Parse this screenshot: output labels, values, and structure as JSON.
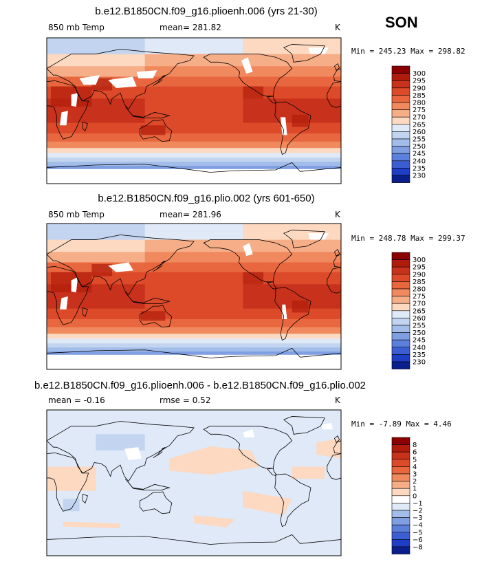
{
  "season": "SON",
  "panels": [
    {
      "title": "b.e12.B1850CN.f09_g16.plioenh.006 (yrs 21-30)",
      "left": "850 mb Temp",
      "center": "mean=  281.82",
      "right": "K",
      "stats": "Min = 245.23 Max = 298.82"
    },
    {
      "title": "b.e12.B1850CN.f09_g16.plio.002 (yrs 601-650)",
      "left": "850 mb Temp",
      "center": "mean=  281.96",
      "right": "K",
      "stats": "Min = 248.78 Max = 299.37"
    },
    {
      "title": "b.e12.B1850CN.f09_g16.plioenh.006 - b.e12.B1850CN.f09_g16.plio.002",
      "left": "mean =   -0.16",
      "center": "rmse =    0.52",
      "right": "K",
      "stats": "Min =   -7.89 Max =   4.46"
    }
  ],
  "chart_data": [
    {
      "type": "heatmap",
      "title": "b.e12.B1850CN.f09_g16.plioenh.006 (yrs 21-30)",
      "variable": "850 mb Temp",
      "units": "K",
      "mean": 281.82,
      "min": 245.23,
      "max": 298.82,
      "colorbar_levels": [
        "300",
        "295",
        "290",
        "285",
        "280",
        "275",
        "270",
        "265",
        "260",
        "255",
        "250",
        "245",
        "240",
        "235",
        "230"
      ],
      "colorbar_colors": [
        "#8b0000",
        "#b01c0c",
        "#c8321c",
        "#dc4a2a",
        "#e8673e",
        "#f08a5e",
        "#f6ae88",
        "#fcd9c0",
        "#dfe9f7",
        "#c2d4f0",
        "#a3bdea",
        "#7f9fe2",
        "#5c7fdb",
        "#3d5ed2",
        "#1f3ec6",
        "#0a1f8c"
      ]
    },
    {
      "type": "heatmap",
      "title": "b.e12.B1850CN.f09_g16.plio.002 (yrs 601-650)",
      "variable": "850 mb Temp",
      "units": "K",
      "mean": 281.96,
      "min": 248.78,
      "max": 299.37,
      "colorbar_levels": [
        "300",
        "295",
        "290",
        "285",
        "280",
        "275",
        "270",
        "265",
        "260",
        "255",
        "250",
        "245",
        "240",
        "235",
        "230"
      ],
      "colorbar_colors": [
        "#8b0000",
        "#b01c0c",
        "#c8321c",
        "#dc4a2a",
        "#e8673e",
        "#f08a5e",
        "#f6ae88",
        "#fcd9c0",
        "#dfe9f7",
        "#c2d4f0",
        "#a3bdea",
        "#7f9fe2",
        "#5c7fdb",
        "#3d5ed2",
        "#1f3ec6",
        "#0a1f8c"
      ]
    },
    {
      "type": "heatmap",
      "title": "b.e12.B1850CN.f09_g16.plioenh.006 - b.e12.B1850CN.f09_g16.plio.002",
      "units": "K",
      "mean": -0.16,
      "rmse": 0.52,
      "min": -7.89,
      "max": 4.46,
      "colorbar_levels": [
        "8",
        "6",
        "5",
        "4",
        "3",
        "2",
        "1",
        "0",
        "−1",
        "−2",
        "−3",
        "−4",
        "−5",
        "−6",
        "−8"
      ],
      "colorbar_colors": [
        "#8b0000",
        "#b01c0c",
        "#c8321c",
        "#dc4a2a",
        "#e8673e",
        "#f08a5e",
        "#f6ae88",
        "#fcd9c0",
        "#ffffff",
        "#dfe9f7",
        "#a3bdea",
        "#7f9fe2",
        "#5c7fdb",
        "#3d5ed2",
        "#1f3ec6",
        "#0a1f8c"
      ]
    }
  ]
}
